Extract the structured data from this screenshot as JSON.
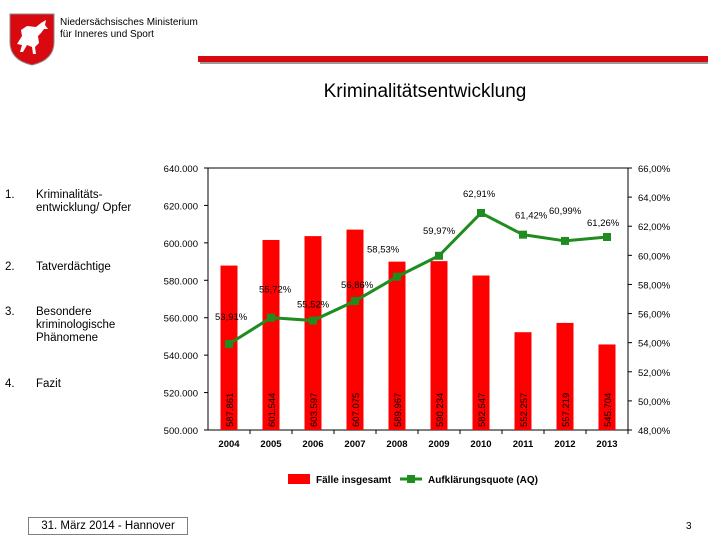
{
  "header": {
    "ministry_line1": "Niedersächsisches Ministerium",
    "ministry_line2": "für Inneres und Sport"
  },
  "title": "Kriminalitätsentwicklung",
  "agenda": [
    {
      "num": "1.",
      "text": "Kriminalitäts-entwicklung/ Opfer"
    },
    {
      "num": "2.",
      "text": "Tatverdächtige"
    },
    {
      "num": "3.",
      "text": "Besondere kriminologische Phänomene"
    },
    {
      "num": "4.",
      "text": "Fazit"
    }
  ],
  "footer": {
    "date": "31. März 2014 - Hannover",
    "page": "3"
  },
  "colors": {
    "bar": "#ff0000",
    "line": "#1e8c1e",
    "accent": "#d8090f"
  },
  "chart_data": {
    "type": "bar",
    "categories": [
      "2004",
      "2005",
      "2006",
      "2007",
      "2008",
      "2009",
      "2010",
      "2011",
      "2012",
      "2013"
    ],
    "series": [
      {
        "name": "Fälle insgesamt",
        "type": "bar",
        "axis": "left",
        "values": [
          587861,
          601544,
          603597,
          607075,
          589967,
          590234,
          582547,
          552257,
          557219,
          545704
        ],
        "labels": [
          "587.861",
          "601.544",
          "603.597",
          "607.075",
          "589.967",
          "590.234",
          "582.547",
          "552.257",
          "557.219",
          "545.704"
        ]
      },
      {
        "name": "Aufklärungsquote (AQ)",
        "type": "line",
        "axis": "right",
        "values": [
          53.91,
          55.72,
          55.52,
          56.86,
          58.53,
          59.97,
          62.91,
          61.42,
          60.99,
          61.26
        ],
        "labels": [
          "53,91%",
          "55,72%",
          "55,52%",
          "56,86%",
          "58,53%",
          "59,97%",
          "62,91%",
          "61,42%",
          "60,99%",
          "61,26%"
        ]
      }
    ],
    "y_left": {
      "min": 500000,
      "max": 640000,
      "ticks": [
        "500.000",
        "520.000",
        "540.000",
        "560.000",
        "580.000",
        "600.000",
        "620.000",
        "640.000"
      ]
    },
    "y_right": {
      "min": 48,
      "max": 66,
      "ticks": [
        "48,00%",
        "50,00%",
        "52,00%",
        "54,00%",
        "56,00%",
        "58,00%",
        "60,00%",
        "62,00%",
        "64,00%",
        "66,00%"
      ]
    },
    "legend": {
      "position": "bottom",
      "items": [
        "Fälle insgesamt",
        "Aufklärungsquote (AQ)"
      ]
    }
  }
}
